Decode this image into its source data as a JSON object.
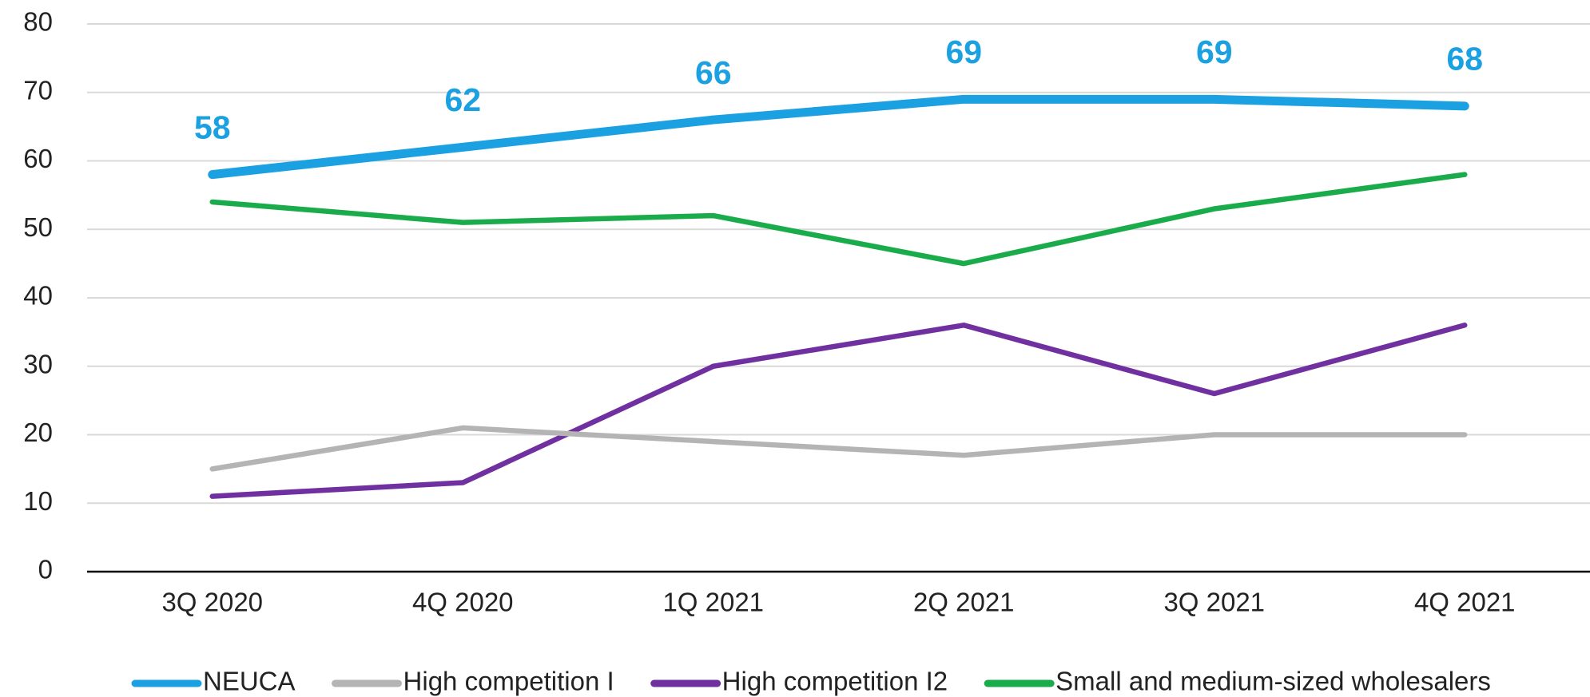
{
  "chart_data": {
    "type": "line",
    "categories": [
      "3Q 2020",
      "4Q 2020",
      "1Q 2021",
      "2Q 2021",
      "3Q 2021",
      "4Q 2021"
    ],
    "series": [
      {
        "name": "NEUCA",
        "color": "#1ba1e2",
        "values": [
          58,
          62,
          66,
          69,
          69,
          68
        ],
        "data_labels": true,
        "width": "thick"
      },
      {
        "name": "High competition I",
        "color": "#b4b4b4",
        "values": [
          15,
          21,
          19,
          17,
          20,
          20
        ]
      },
      {
        "name": "High competition I2",
        "color": "#7030a0",
        "values": [
          11,
          13,
          30,
          36,
          26,
          36
        ]
      },
      {
        "name": "Small and medium-sized wholesalers",
        "color": "#1aab4a",
        "values": [
          54,
          51,
          52,
          45,
          53,
          58
        ]
      }
    ],
    "ylim": [
      0,
      80
    ],
    "yticks": [
      0,
      10,
      20,
      30,
      40,
      50,
      60,
      70,
      80
    ],
    "grid": true,
    "legend": "bottom"
  }
}
